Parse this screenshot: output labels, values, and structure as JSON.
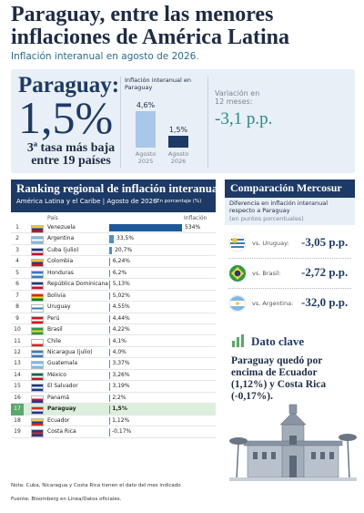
{
  "header": {
    "title": "Paraguay, entre las menores inflaciones de América Latina",
    "subtitle": "Inflación interanual en agosto de 2026."
  },
  "hero": {
    "label": "Paraguay:",
    "value": "1,5%",
    "note": "3ª tasa más baja entre 19 países",
    "change_label": "Variación en 12 meses:",
    "change_value": "-3,1 p.p."
  },
  "chart_data": [
    {
      "type": "bar",
      "title": "Inflación interanual en Paraguay",
      "categories": [
        "Agosto 2025",
        "Agosto 2026"
      ],
      "values": [
        4.6,
        1.5
      ],
      "value_labels": [
        "4,6%",
        "1,5%"
      ],
      "colors": [
        "#a9c7e6",
        "#1d3a66"
      ]
    },
    {
      "type": "hbar",
      "title": "Ranking regional de inflación interanual",
      "subtitle": "América Latina y el Caribe | Agosto de 2026",
      "unit_note": "En porcentaje (%)",
      "category_header": "País",
      "value_header": "Inflación",
      "ranks": [
        1,
        2,
        3,
        4,
        5,
        6,
        7,
        8,
        9,
        10,
        11,
        12,
        13,
        14,
        15,
        16,
        17,
        18,
        19
      ],
      "categories": [
        "Venezuela",
        "Argentina",
        "Cuba (julio)",
        "Colombia",
        "Honduras",
        "República Dominicana",
        "Bolivia",
        "Uruguay",
        "Perú",
        "Brasil",
        "Chile",
        "Nicaragua (julio)",
        "Guatemala",
        "México",
        "El Salvador",
        "Panamá",
        "Paraguay",
        "Ecuador",
        "Costa Rica"
      ],
      "values": [
        534,
        33.5,
        20.7,
        6.24,
        6.2,
        5.13,
        5.02,
        4.55,
        4.44,
        4.22,
        4.1,
        4.0,
        3.37,
        3.26,
        3.19,
        2.2,
        1.5,
        1.12,
        -0.17
      ],
      "value_labels": [
        "534%",
        "33,5%",
        "20,7%",
        "6,24%",
        "6,2%",
        "5,13%",
        "5,02%",
        "4,55%",
        "4,44%",
        "4,22%",
        "4,1%",
        "4,0%",
        "3,37%",
        "3,26%",
        "3,19%",
        "2,2%",
        "1,5%",
        "1,12%",
        "-0,17%"
      ],
      "color": "#4f8fc9",
      "highlight": "Paraguay",
      "highlight_color": "#5aa86a"
    }
  ],
  "mercosur": {
    "title": "Comparación Mercosur",
    "subtitle": "Diferencia en inflación interanual respecto a Paraguay",
    "subtitle_unit": "(en puntos porcentuales)",
    "rows": [
      {
        "label": "vs. Uruguay:",
        "value": "-3,05 p.p."
      },
      {
        "label": "vs. Brasil:",
        "value": "-2,72 p.p."
      },
      {
        "label": "vs. Argentina:",
        "value": "-32,0 p.p."
      }
    ]
  },
  "key_fact": {
    "title": "Dato clave",
    "text": "Paraguay quedó por encima de Ecuador (1,12%) y Costa Rica (-0,17%)."
  },
  "footer": {
    "note": "Nota: Cuba, Nicaragua y Costa Rica tienen el dato del mes indicado",
    "source": "Fuente: Bloomberg en Línea/Datos oficiales."
  }
}
